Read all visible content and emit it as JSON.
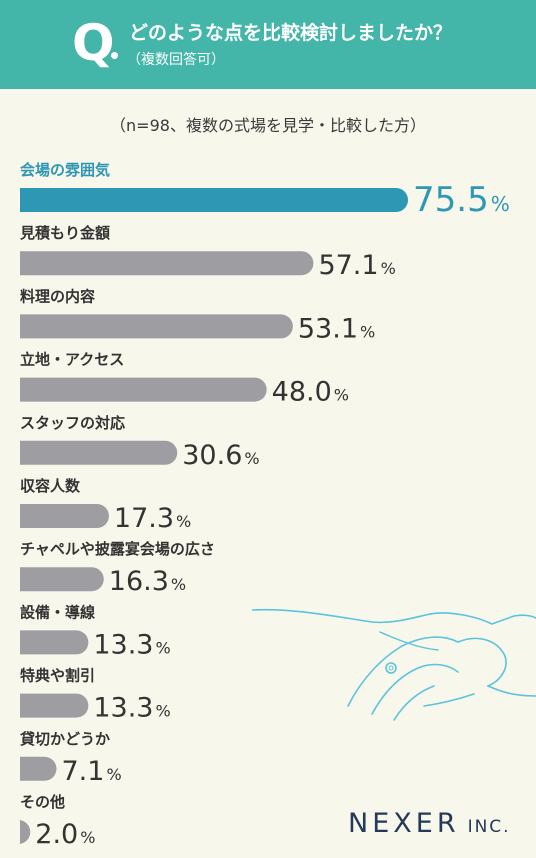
{
  "header": {
    "q_mark": "Q",
    "question": "どのような点を比較検討しましたか？",
    "note": "（複数回答可）"
  },
  "sample_note": "（n=98、複数の式場を見学・比較した方）",
  "chart_data": {
    "type": "bar",
    "orientation": "horizontal",
    "categories": [
      "会場の雰囲気",
      "見積もり金額",
      "料理の内容",
      "立地・アクセス",
      "スタッフの対応",
      "収容人数",
      "チャペルや披露宴会場の広さ",
      "設備・導線",
      "特典や割引",
      "貸切かどうか",
      "その他"
    ],
    "values": [
      75.5,
      57.1,
      53.1,
      48.0,
      30.6,
      17.3,
      16.3,
      13.3,
      13.3,
      7.1,
      2.0
    ],
    "value_labels": [
      "75.5",
      "57.1",
      "53.1",
      "48.0",
      "30.6",
      "17.3",
      "16.3",
      "13.3",
      "13.3",
      "7.1",
      "2.0"
    ],
    "unit": "%",
    "highlight_index": 0,
    "colors": {
      "highlight_bar": "#2e97b3",
      "highlight_text": "#2e97b3",
      "bar": "#9d9da2",
      "text": "#333333"
    }
  },
  "logo": {
    "name": "NEXER",
    "suffix": "INC."
  }
}
